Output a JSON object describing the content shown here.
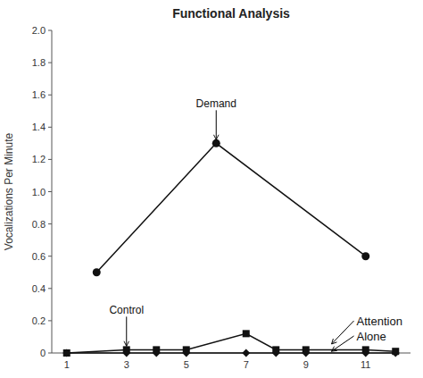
{
  "chart_data": {
    "type": "line",
    "title": "Functional Analysis",
    "ylabel": "Vocalizations Per Minute",
    "xlim": [
      0.5,
      12.5
    ],
    "xticks": [
      1,
      3,
      5,
      7,
      9,
      11
    ],
    "ylim": [
      0,
      2.0
    ],
    "yticks": [
      0,
      0.2,
      0.4,
      0.6,
      0.8,
      {
        "value": 1.0,
        "label": "1.0"
      },
      1.2,
      1.4,
      1.6,
      1.8,
      {
        "value": 2.0,
        "label": "2.0"
      }
    ],
    "grid": false,
    "series": [
      {
        "color": "#111111",
        "marker": "circle",
        "x": [
          2,
          6,
          11
        ],
        "values": [
          0.5,
          1.3,
          0.6
        ]
      },
      {
        "color": "#111111",
        "marker": "square",
        "x": [
          1,
          3,
          4,
          5,
          7,
          8,
          9,
          11,
          12
        ],
        "values": [
          0.0,
          0.02,
          0.02,
          0.02,
          0.12,
          0.02,
          0.02,
          0.02,
          0.01
        ]
      },
      {
        "color": "#111111",
        "marker": "diamond",
        "x": [
          1,
          3,
          4,
          5,
          7,
          8,
          9,
          11,
          12
        ],
        "values": [
          0.0,
          0.0,
          0.0,
          0.0,
          0.0,
          0.0,
          0.0,
          0.0,
          0.0
        ]
      }
    ],
    "annotations": [
      {
        "text": "Demand",
        "x": 6.0,
        "y": 1.3
      },
      {
        "text": "Control",
        "x": 3.0,
        "y": 0.02
      },
      {
        "text": "Attention",
        "x": 9.8,
        "y": 0.05
      },
      {
        "text": "Alone",
        "x": 9.8,
        "y": 0.005
      }
    ]
  }
}
